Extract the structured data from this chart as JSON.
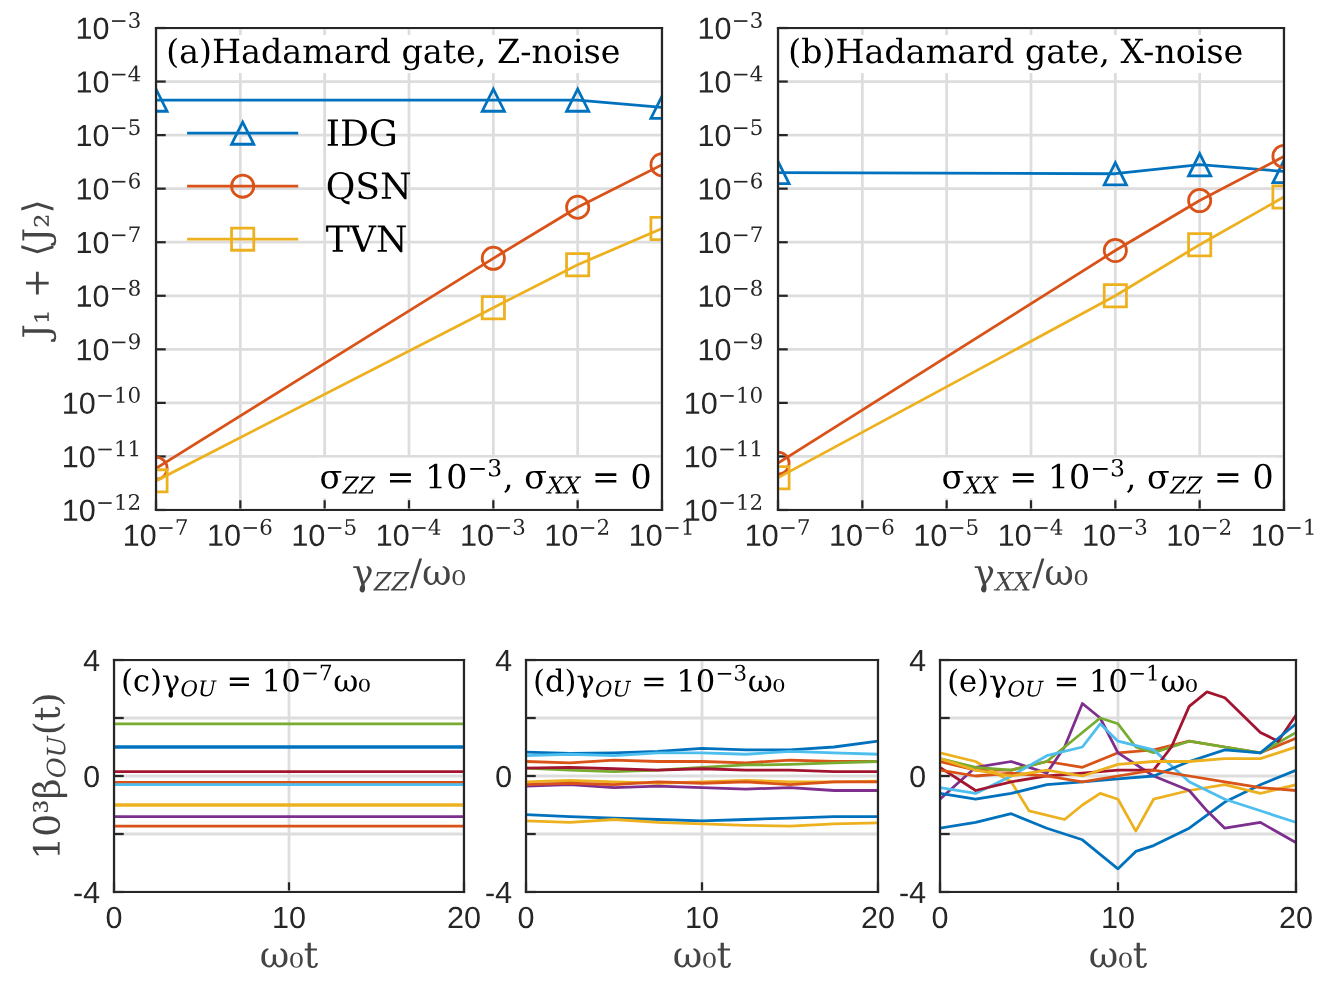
{
  "chart_data": [
    {
      "type": "line",
      "title": "(a)Hadamard gate, Z-noise",
      "xlabel": "γ$_{ZZ}$/ω₀",
      "ylabel": "J₁ + ⟨J₂⟩",
      "log": "xy",
      "grid": true,
      "legend": "top left",
      "xlim": [
        1e-07,
        0.1
      ],
      "xticks": [
        {
          "value": 1e-07,
          "label": "10$^{−7}$"
        },
        {
          "value": 1e-06,
          "label": "10$^{−6}$"
        },
        {
          "value": 1e-05,
          "label": "10$^{−5}$"
        },
        {
          "value": 0.0001,
          "label": "10$^{−4}$"
        },
        {
          "value": 0.001,
          "label": "10$^{−3}$"
        },
        {
          "value": 0.01,
          "label": "10$^{−2}$"
        },
        {
          "value": 0.1,
          "label": "10$^{−1}$"
        }
      ],
      "ylim": [
        1e-12,
        0.001
      ],
      "yticks": [
        {
          "value": 1e-12,
          "label": "10$^{−12}$"
        },
        {
          "value": 1e-11,
          "label": "10$^{−11}$"
        },
        {
          "value": 1e-10,
          "label": "10$^{−10}$"
        },
        {
          "value": 1e-09,
          "label": "10$^{−9}$"
        },
        {
          "value": 1e-08,
          "label": "10$^{−8}$"
        },
        {
          "value": 1e-07,
          "label": "10$^{−7}$"
        },
        {
          "value": 1e-06,
          "label": "10$^{−6}$"
        },
        {
          "value": 1e-05,
          "label": "10$^{−5}$"
        },
        {
          "value": 0.0001,
          "label": "10$^{−4}$"
        },
        {
          "value": 0.001,
          "label": "10$^{−3}$"
        }
      ],
      "x": [
        1e-07,
        0.001,
        0.01,
        0.1
      ],
      "annotations": [
        "σ$_{ZZ}$ = 10$^{−3}$, σ$_{XX}$ = 0"
      ],
      "series": [
        {
          "name": "IDG",
          "color": "#0072bd",
          "marker": "triangle",
          "values": [
            4.5e-05,
            4.5e-05,
            4.5e-05,
            3.3e-05
          ]
        },
        {
          "name": "QSN",
          "color": "#d95319",
          "marker": "circle",
          "values": [
            6e-12,
            5e-08,
            4.5e-07,
            2.8e-06
          ]
        },
        {
          "name": "TVN",
          "color": "#edb120",
          "marker": "square",
          "values": [
            3.5e-12,
            6e-09,
            3.8e-08,
            1.8e-07
          ]
        }
      ]
    },
    {
      "type": "line",
      "title": "(b)Hadamard gate, X-noise",
      "xlabel": "γ$_{XX}$/ω₀",
      "log": "xy",
      "grid": true,
      "xlim": [
        1e-07,
        0.1
      ],
      "xticks": [
        {
          "value": 1e-07,
          "label": "10$^{−7}$"
        },
        {
          "value": 1e-06,
          "label": "10$^{−6}$"
        },
        {
          "value": 1e-05,
          "label": "10$^{−5}$"
        },
        {
          "value": 0.0001,
          "label": "10$^{−4}$"
        },
        {
          "value": 0.001,
          "label": "10$^{−3}$"
        },
        {
          "value": 0.01,
          "label": "10$^{−2}$"
        },
        {
          "value": 0.1,
          "label": "10$^{−1}$"
        }
      ],
      "ylim": [
        1e-12,
        0.001
      ],
      "yticks": [
        {
          "value": 1e-12,
          "label": "10$^{−12}$"
        },
        {
          "value": 1e-11,
          "label": "10$^{−11}$"
        },
        {
          "value": 1e-10,
          "label": "10$^{−10}$"
        },
        {
          "value": 1e-09,
          "label": "10$^{−9}$"
        },
        {
          "value": 1e-08,
          "label": "10$^{−8}$"
        },
        {
          "value": 1e-07,
          "label": "10$^{−7}$"
        },
        {
          "value": 1e-06,
          "label": "10$^{−6}$"
        },
        {
          "value": 1e-05,
          "label": "10$^{−5}$"
        },
        {
          "value": 0.0001,
          "label": "10$^{−4}$"
        },
        {
          "value": 0.001,
          "label": "10$^{−3}$"
        }
      ],
      "x": [
        1e-07,
        0.001,
        0.01,
        0.1
      ],
      "annotations": [
        "σ$_{XX}$ = 10$^{−3}$, σ$_{ZZ}$ = 0"
      ],
      "series": [
        {
          "color": "#0072bd",
          "marker": "triangle",
          "values": [
            2e-06,
            1.9e-06,
            2.8e-06,
            2.1e-06
          ]
        },
        {
          "color": "#d95319",
          "marker": "circle",
          "values": [
            7.5e-12,
            7e-08,
            6e-07,
            4e-06
          ]
        },
        {
          "color": "#edb120",
          "marker": "square",
          "values": [
            4e-12,
            1e-08,
            9e-08,
            7e-07
          ]
        }
      ]
    },
    {
      "type": "line",
      "title": "(c)γ$_{OU}$ = 10$^{−7}$ω₀",
      "xlabel": "ω₀t",
      "ylabel": "10³β$_{OU}$(t)",
      "grid": true,
      "xlim": [
        0,
        20
      ],
      "xticks": [
        0,
        10,
        20
      ],
      "ylim": [
        -4,
        4
      ],
      "yticks": [
        -4,
        {
          "value": -2,
          "label": null
        },
        0,
        {
          "value": 2,
          "label": null
        },
        4
      ],
      "x": [
        0,
        20
      ],
      "series": [
        {
          "color": "#0072bd",
          "values": [
            1.0,
            1.0
          ]
        },
        {
          "color": "#d95319",
          "values": [
            -0.22,
            -0.22
          ]
        },
        {
          "color": "#edb120",
          "values": [
            -1.0,
            -1.0
          ]
        },
        {
          "color": "#7e2f8e",
          "values": [
            -1.4,
            -1.4
          ]
        },
        {
          "color": "#77ac30",
          "values": [
            1.8,
            1.8
          ]
        },
        {
          "color": "#4dbeee",
          "values": [
            -0.3,
            -0.3
          ]
        },
        {
          "color": "#a2142f",
          "values": [
            0.15,
            0.15
          ]
        },
        {
          "color": "#0072bd",
          "values": [
            1.0,
            1.0
          ]
        },
        {
          "color": "#d95319",
          "values": [
            -1.73,
            -1.73
          ]
        },
        {
          "color": "#edb120",
          "values": [
            -1.0,
            -1.0
          ]
        }
      ]
    },
    {
      "type": "line",
      "title": "(d)γ$_{OU}$ = 10$^{−3}$ω₀",
      "xlabel": "ω₀t",
      "grid": true,
      "xlim": [
        0,
        20
      ],
      "xticks": [
        0,
        10,
        20
      ],
      "ylim": [
        -4,
        4
      ],
      "yticks": [
        -4,
        {
          "value": -2,
          "label": null
        },
        0,
        {
          "value": 2,
          "label": null
        },
        4
      ],
      "x": [
        0,
        2.5,
        5,
        7.5,
        10,
        12.5,
        15,
        17.5,
        20
      ],
      "series": [
        {
          "color": "#0072bd",
          "values": [
            0.82,
            0.78,
            0.8,
            0.85,
            0.95,
            0.9,
            0.9,
            1.0,
            1.2
          ]
        },
        {
          "color": "#d95319",
          "values": [
            0.5,
            0.45,
            0.55,
            0.5,
            0.5,
            0.45,
            0.55,
            0.5,
            0.5
          ]
        },
        {
          "color": "#edb120",
          "values": [
            -0.2,
            -0.15,
            -0.2,
            -0.25,
            -0.2,
            -0.15,
            -0.2,
            -0.2,
            -0.18
          ]
        },
        {
          "color": "#7e2f8e",
          "values": [
            -0.35,
            -0.3,
            -0.4,
            -0.35,
            -0.4,
            -0.45,
            -0.4,
            -0.5,
            -0.5
          ]
        },
        {
          "color": "#77ac30",
          "values": [
            0.27,
            0.2,
            0.15,
            0.2,
            0.3,
            0.38,
            0.4,
            0.45,
            0.5
          ]
        },
        {
          "color": "#4dbeee",
          "values": [
            0.7,
            0.75,
            0.7,
            0.8,
            0.8,
            0.75,
            0.85,
            0.8,
            0.75
          ]
        },
        {
          "color": "#a2142f",
          "values": [
            0.27,
            0.3,
            0.25,
            0.2,
            0.25,
            0.2,
            0.2,
            0.15,
            0.15
          ]
        },
        {
          "color": "#0072bd",
          "values": [
            -1.33,
            -1.4,
            -1.45,
            -1.5,
            -1.55,
            -1.5,
            -1.45,
            -1.4,
            -1.4
          ]
        },
        {
          "color": "#d95319",
          "values": [
            -0.3,
            -0.25,
            -0.3,
            -0.2,
            -0.25,
            -0.2,
            -0.3,
            -0.2,
            -0.2
          ]
        },
        {
          "color": "#edb120",
          "values": [
            -1.55,
            -1.6,
            -1.5,
            -1.6,
            -1.65,
            -1.7,
            -1.73,
            -1.65,
            -1.62
          ]
        }
      ]
    },
    {
      "type": "line",
      "title": "(e)γ$_{OU}$ = 10$^{−1}$ω₀",
      "xlabel": "ω₀t",
      "grid": true,
      "xlim": [
        0,
        20
      ],
      "xticks": [
        0,
        10,
        20
      ],
      "ylim": [
        -4,
        4
      ],
      "yticks": [
        -4,
        {
          "value": -2,
          "label": null
        },
        0,
        {
          "value": 2,
          "label": null
        },
        4
      ],
      "x": [
        0,
        2,
        4,
        6,
        8,
        10,
        12,
        14,
        16,
        18,
        20
      ],
      "series": [
        {
          "color": "#0072bd",
          "x": [
            0,
            2,
            4,
            6,
            8,
            10,
            11,
            12,
            14,
            16,
            18,
            20
          ],
          "values": [
            -1.8,
            -1.6,
            -1.3,
            -1.8,
            -2.2,
            -3.2,
            -2.6,
            -2.4,
            -1.8,
            -0.9,
            -0.3,
            0.2
          ]
        },
        {
          "color": "#d95319",
          "values": [
            0.5,
            0.2,
            0.2,
            0.5,
            0.3,
            0.8,
            0.9,
            1.2,
            1.0,
            0.8,
            1.3
          ]
        },
        {
          "color": "#edb120",
          "x": [
            0,
            2,
            4,
            5,
            7,
            8,
            9,
            10,
            11,
            12,
            14,
            16,
            18,
            20
          ],
          "values": [
            0.8,
            0.5,
            -0.2,
            -1.2,
            -1.5,
            -1.0,
            -0.6,
            -0.8,
            -1.9,
            -0.8,
            -0.5,
            -0.3,
            -0.6,
            -0.3
          ]
        },
        {
          "color": "#7e2f8e",
          "x": [
            0,
            2,
            4,
            6,
            7,
            8,
            9,
            10,
            12,
            14,
            15,
            16,
            18,
            20
          ],
          "values": [
            -0.8,
            0.3,
            0.5,
            0.1,
            1.0,
            2.5,
            2.0,
            0.8,
            0.0,
            -0.5,
            -1.2,
            -1.8,
            -1.6,
            -2.3
          ]
        },
        {
          "color": "#77ac30",
          "x": [
            0,
            2,
            4,
            6,
            7,
            8,
            9,
            10,
            11,
            12,
            14,
            16,
            18,
            20
          ],
          "values": [
            0.6,
            0.3,
            0.2,
            0.5,
            1.0,
            1.5,
            2.0,
            1.8,
            1.0,
            0.8,
            1.2,
            1.0,
            0.8,
            1.5
          ]
        },
        {
          "color": "#4dbeee",
          "x": [
            0,
            2,
            4,
            6,
            8,
            9,
            10,
            12,
            14,
            16,
            18,
            20
          ],
          "values": [
            -0.4,
            -0.6,
            0.0,
            0.7,
            1.0,
            1.8,
            1.2,
            0.9,
            -0.2,
            -0.8,
            -1.2,
            -1.6
          ]
        },
        {
          "color": "#a2142f",
          "x": [
            0,
            2,
            4,
            6,
            8,
            10,
            12,
            13,
            14,
            15,
            16,
            18,
            19,
            20
          ],
          "values": [
            0.3,
            -0.5,
            -0.2,
            0.0,
            0.1,
            0.2,
            0.2,
            1.0,
            2.4,
            2.9,
            2.7,
            1.5,
            1.2,
            2.1
          ]
        },
        {
          "color": "#0072bd",
          "values": [
            -0.6,
            -0.8,
            -0.6,
            -0.3,
            -0.2,
            -0.1,
            0.0,
            0.5,
            0.9,
            0.8,
            1.8
          ]
        },
        {
          "color": "#d95319",
          "values": [
            0.2,
            0.0,
            0.1,
            0.0,
            -0.2,
            0.0,
            0.2,
            0.0,
            -0.2,
            -0.4,
            -0.5
          ]
        },
        {
          "color": "#edb120",
          "values": [
            0.6,
            0.2,
            0.0,
            0.2,
            0.0,
            0.4,
            0.5,
            0.5,
            0.6,
            0.6,
            1.0
          ]
        }
      ]
    }
  ]
}
